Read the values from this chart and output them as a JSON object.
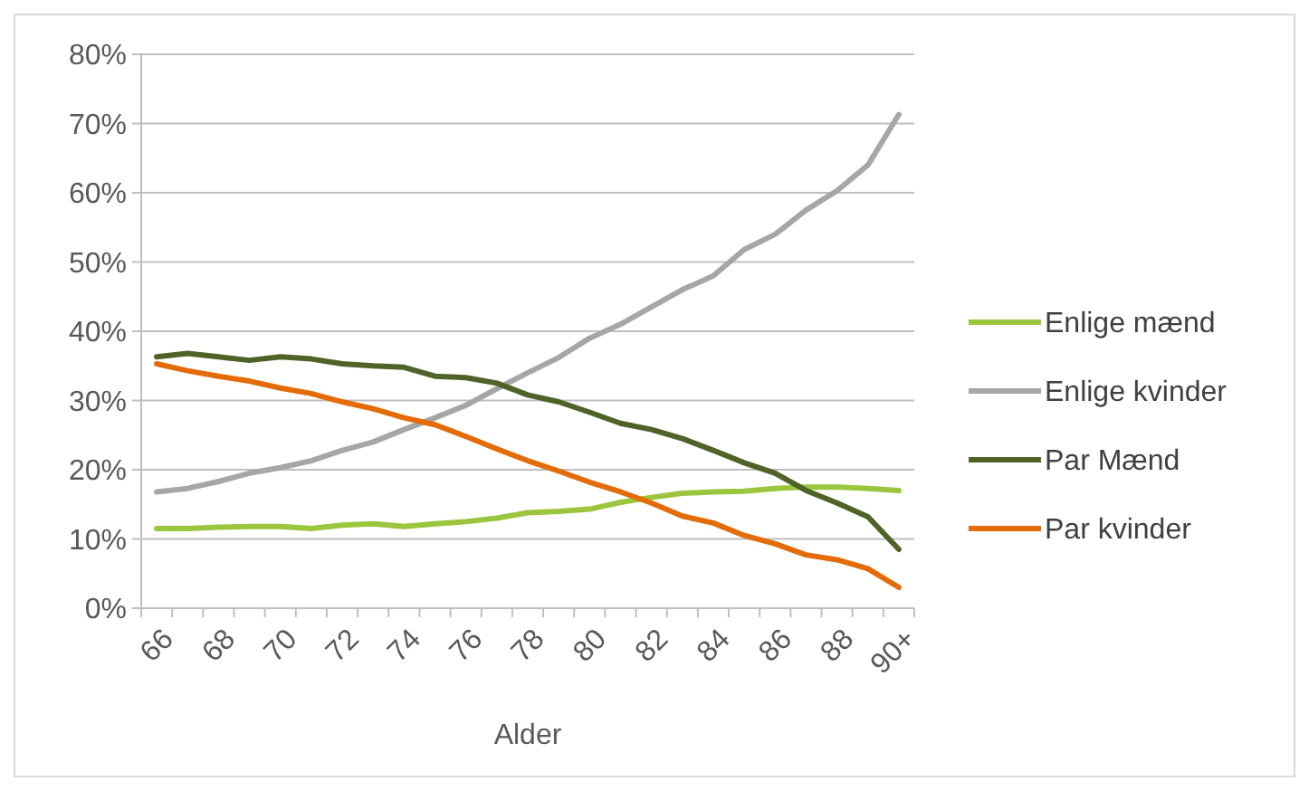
{
  "chart_data": {
    "type": "line",
    "xlabel": "Alder",
    "categories": [
      "66",
      null,
      "68",
      null,
      "70",
      null,
      "72",
      null,
      "74",
      null,
      "76",
      null,
      "78",
      null,
      "80",
      null,
      "82",
      null,
      "84",
      null,
      "86",
      null,
      "88",
      null,
      "90+"
    ],
    "series": [
      {
        "name": "Enlige mænd",
        "color": "#9bc53d",
        "values": [
          11.5,
          11.5,
          11.7,
          11.8,
          11.8,
          11.5,
          12,
          12.2,
          11.8,
          12.2,
          12.5,
          13,
          13.8,
          14,
          14.3,
          15.3,
          16,
          16.6,
          16.8,
          16.9,
          17.3,
          17.5,
          17.5,
          17.3,
          17
        ]
      },
      {
        "name": "Enlige kvinder",
        "color": "#a6a6a6",
        "values": [
          16.8,
          17.3,
          18.3,
          19.5,
          20.3,
          21.3,
          22.8,
          24,
          25.8,
          27.5,
          29.3,
          31.7,
          34,
          36.2,
          39,
          41,
          43.5,
          46,
          48,
          51.8,
          54,
          57.5,
          60.3,
          64,
          71.3
        ]
      },
      {
        "name": "Par Mænd",
        "color": "#4f6228",
        "values": [
          36.3,
          36.8,
          36.3,
          35.8,
          36.3,
          36,
          35.3,
          35,
          34.8,
          33.5,
          33.3,
          32.5,
          30.8,
          29.8,
          28.3,
          26.7,
          25.8,
          24.5,
          22.8,
          21,
          19.5,
          17,
          15.2,
          13.2,
          8.5
        ]
      },
      {
        "name": "Par kvinder",
        "color": "#e36c09",
        "values": [
          35.3,
          34.3,
          33.5,
          32.8,
          31.8,
          31,
          29.8,
          28.8,
          27.5,
          26.5,
          24.8,
          23,
          21.3,
          19.8,
          18.2,
          16.8,
          15.2,
          13.3,
          12.3,
          10.5,
          9.3,
          7.7,
          7,
          5.7,
          3
        ]
      }
    ],
    "ylim": [
      0,
      80
    ],
    "yticks": [
      {
        "value": 0,
        "label": "0%"
      },
      {
        "value": 10,
        "label": "10%"
      },
      {
        "value": 20,
        "label": "20%"
      },
      {
        "value": 30,
        "label": "30%"
      },
      {
        "value": 40,
        "label": "40%"
      },
      {
        "value": 50,
        "label": "50%"
      },
      {
        "value": 60,
        "label": "60%"
      },
      {
        "value": 70,
        "label": "70%"
      },
      {
        "value": 80,
        "label": "80%"
      }
    ],
    "grid": "y",
    "legend": "right",
    "marker": "none",
    "line_style": "solid"
  }
}
